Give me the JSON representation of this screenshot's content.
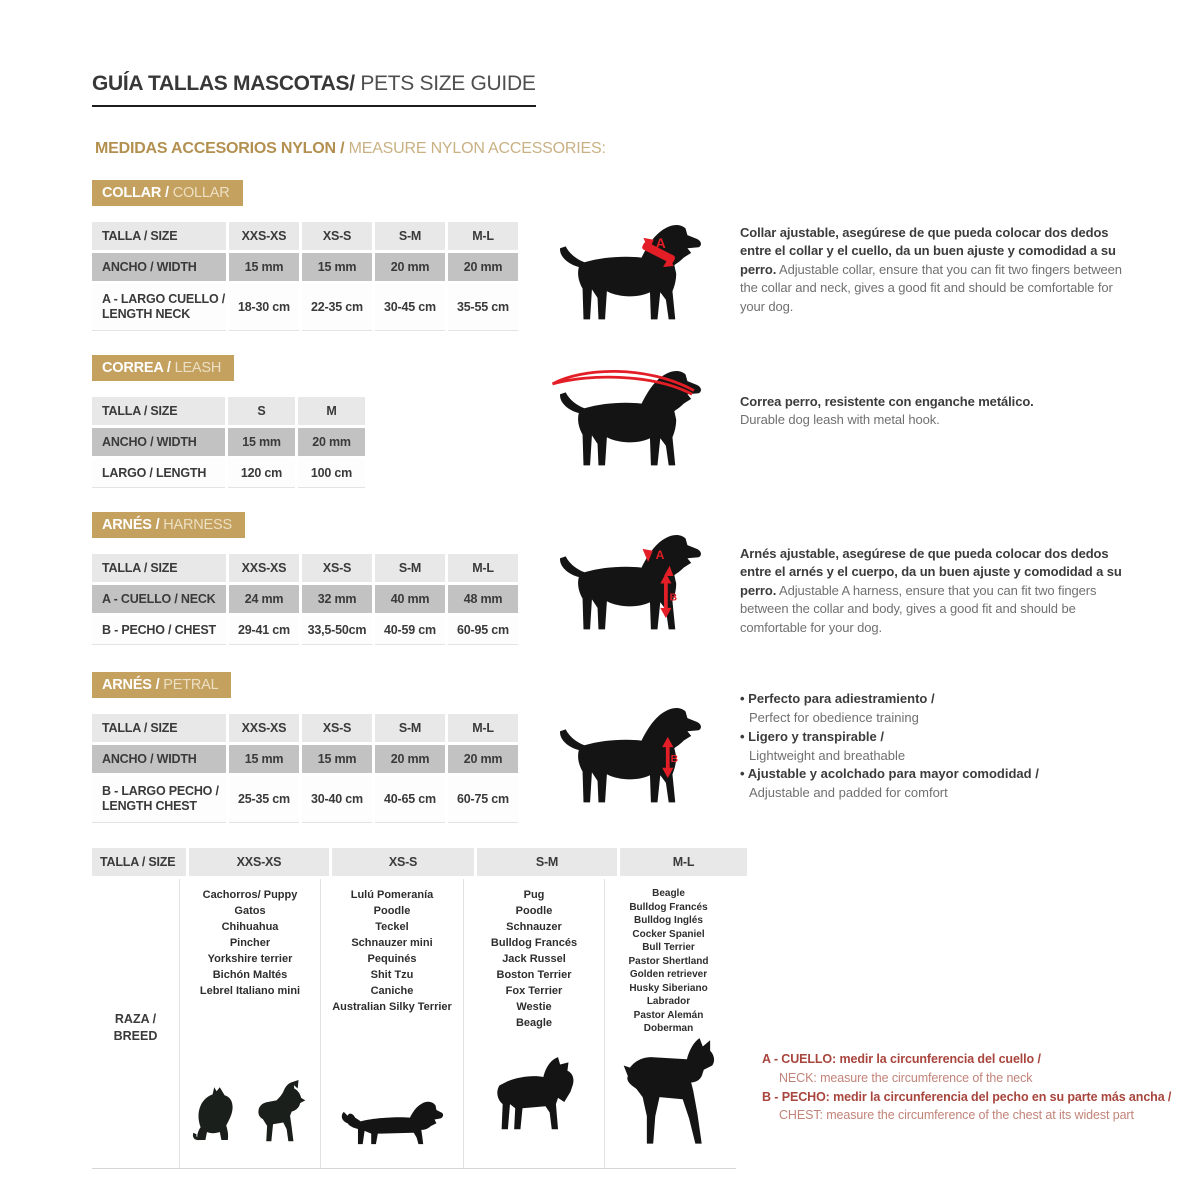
{
  "header": {
    "title_es": "GUÍA TALLAS MASCOTAS/",
    "title_en": " PETS SIZE GUIDE",
    "subtitle_es": "MEDIDAS ACCESORIOS NYLON / ",
    "subtitle_en": "MEASURE NYLON ACCESSORIES:"
  },
  "marks": {
    "a": "A",
    "b": "B"
  },
  "colors": {
    "tan": "#c5a15f",
    "red": "#e31e26",
    "note_red": "#a8453d",
    "header_gray": "#e8e8e8",
    "mid_gray": "#c2c2c2"
  },
  "icons": {
    "collar_dog": "dog-collar-measure-icon",
    "leash_dog": "dog-leash-icon",
    "harness_dog": "dog-harness-measure-icon",
    "petral_dog": "dog-petral-measure-icon",
    "cat": "cat-silhouette-icon",
    "chihuahua": "chihuahua-silhouette-icon",
    "dachshund": "dachshund-silhouette-icon",
    "schnauzer": "schnauzer-silhouette-icon",
    "doberman": "doberman-silhouette-icon"
  },
  "collar": {
    "badge_es": "COLLAR / ",
    "badge_en": "COLLAR",
    "table": {
      "size_label": "TALLA / SIZE",
      "sizes": [
        "XXS-XS",
        "XS-S",
        "S-M",
        "M-L"
      ],
      "width_label": "ANCHO / WIDTH",
      "widths": [
        "15 mm",
        "15 mm",
        "20 mm",
        "20 mm"
      ],
      "neck_label_1": "A - LARGO CUELLO /",
      "neck_label_2": "LENGTH NECK",
      "necks": [
        "18-30 cm",
        "22-35 cm",
        "30-45 cm",
        "35-55 cm"
      ]
    },
    "desc_es": "Collar ajustable, asegúrese de que pueda colocar dos dedos entre el collar y el cuello, da un buen ajuste y comodidad a su perro.",
    "desc_en": "Adjustable collar, ensure that you can fit two fingers between the collar and neck, gives a good fit and should be comfortable for your dog."
  },
  "leash": {
    "badge_es": "CORREA / ",
    "badge_en": "LEASH",
    "table": {
      "size_label": "TALLA / SIZE",
      "sizes": [
        "S",
        "M"
      ],
      "width_label": "ANCHO / WIDTH",
      "widths": [
        "15 mm",
        "20 mm"
      ],
      "length_label": "LARGO / LENGTH",
      "lengths": [
        "120 cm",
        "100 cm"
      ]
    },
    "desc_es": "Correa perro, resistente con enganche metálico.",
    "desc_en": "Durable dog leash with metal hook."
  },
  "harness": {
    "badge_es": "ARNÉS / ",
    "badge_en": "HARNESS",
    "table": {
      "size_label": "TALLA / SIZE",
      "sizes": [
        "XXS-XS",
        "XS-S",
        "S-M",
        "M-L"
      ],
      "neck_label": "A - CUELLO / NECK",
      "necks": [
        "24 mm",
        "32 mm",
        "40 mm",
        "48 mm"
      ],
      "chest_label": "B - PECHO / CHEST",
      "chests": [
        "29-41 cm",
        "33,5-50cm",
        "40-59 cm",
        "60-95 cm"
      ]
    },
    "desc_es": "Arnés ajustable, asegúrese de que pueda colocar dos dedos entre el arnés y el cuerpo, da un buen ajuste y comodidad a su perro.",
    "desc_en": "Adjustable A harness, ensure that you can fit two fingers between the collar and body, gives a good fit and should be comfortable for your dog."
  },
  "petral": {
    "badge_es": "ARNÉS / ",
    "badge_en": "PETRAL",
    "table": {
      "size_label": "TALLA / SIZE",
      "sizes": [
        "XXS-XS",
        "XS-S",
        "S-M",
        "M-L"
      ],
      "width_label": "ANCHO / WIDTH",
      "widths": [
        "15 mm",
        "15 mm",
        "20 mm",
        "20 mm"
      ],
      "chest_label_1": "B - LARGO PECHO /",
      "chest_label_2": "LENGTH CHEST",
      "chests": [
        "25-35 cm",
        "30-40 cm",
        "40-65 cm",
        "60-75 cm"
      ]
    },
    "bullets": [
      {
        "es": "Perfecto para adiestramiento /",
        "en": "Perfect for obedience training"
      },
      {
        "es": "Ligero y transpirable /",
        "en": "Lightweight and breathable"
      },
      {
        "es": "Ajustable y acolchado para mayor comodidad /",
        "en": "Adjustable and padded for comfort"
      }
    ]
  },
  "breeds": {
    "size_label": "TALLA /  SIZE",
    "sizes": [
      "XXS-XS",
      "XS-S",
      "S-M",
      "M-L"
    ],
    "row_label_1": "RAZA /",
    "row_label_2": "BREED",
    "columns": [
      {
        "size": "XXS-XS",
        "items": [
          "Cachorros/ Puppy",
          "Gatos",
          "Chihuahua",
          "Pincher",
          "Yorkshire terrier",
          "Bichón Maltés",
          "Lebrel Italiano mini"
        ]
      },
      {
        "size": "XS-S",
        "items": [
          "Lulú Pomeranía",
          "Poodle",
          "Teckel",
          "Schnauzer mini",
          "Pequinés",
          "Shit Tzu",
          "Caniche",
          "Australian Silky Terrier"
        ]
      },
      {
        "size": "S-M",
        "items": [
          "Pug",
          "Poodle",
          "Schnauzer",
          "Bulldog Francés",
          "Jack Russel",
          "Boston Terrier",
          "Fox Terrier",
          "Westie",
          "Beagle"
        ]
      },
      {
        "size": "M-L",
        "items": [
          "Beagle",
          "Bulldog Francés",
          "Bulldog Inglés",
          "Cocker Spaniel",
          "Bull Terrier",
          "Pastor Shertland",
          "Golden retriever",
          "Husky Siberiano",
          "Labrador",
          "Pastor Alemán",
          "Doberman"
        ]
      }
    ]
  },
  "notes": [
    {
      "es": "A - CUELLO: medir la circunferencia del cuello /",
      "en": "NECK: measure the circumference of the neck"
    },
    {
      "es": "B - PECHO: medir la circunferencia del pecho en su parte más ancha /",
      "en": "CHEST: measure the circumference of the chest at its widest part"
    }
  ]
}
